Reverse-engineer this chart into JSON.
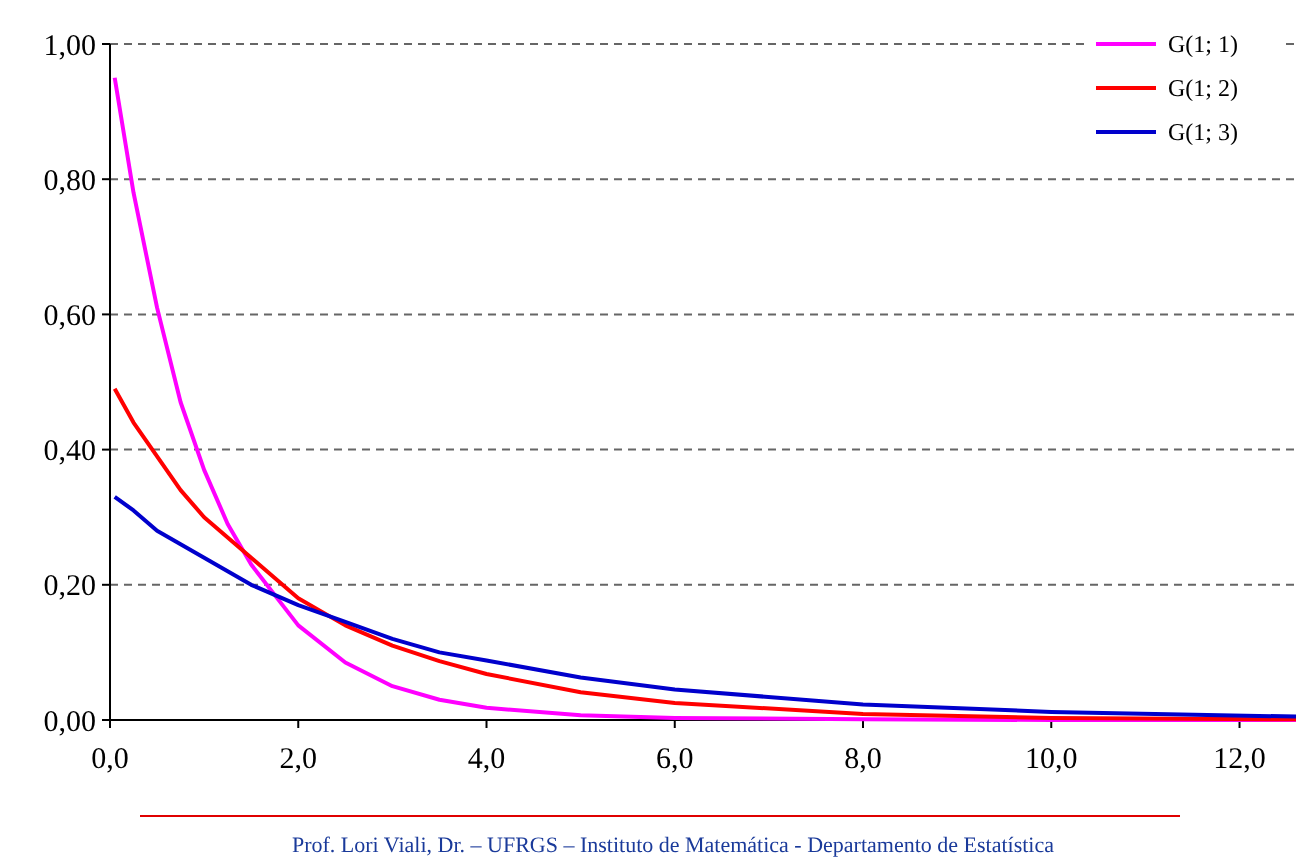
{
  "chart_data": {
    "type": "line",
    "x": [
      0.05,
      0.25,
      0.5,
      0.75,
      1,
      1.25,
      1.5,
      2,
      2.5,
      3,
      3.5,
      4,
      5,
      6,
      8,
      10,
      12.6
    ],
    "series": [
      {
        "name": "G(1; 1)",
        "color": "#ff00ff",
        "values": [
          0.95,
          0.78,
          0.61,
          0.47,
          0.37,
          0.29,
          0.23,
          0.14,
          0.085,
          0.05,
          0.03,
          0.018,
          0.007,
          0.003,
          0.001,
          0,
          0
        ]
      },
      {
        "name": "G(1; 2)",
        "color": "#ff0000",
        "values": [
          0.49,
          0.44,
          0.39,
          0.34,
          0.3,
          0.27,
          0.24,
          0.18,
          0.14,
          0.11,
          0.087,
          0.068,
          0.041,
          0.025,
          0.009,
          0.003,
          0.001
        ]
      },
      {
        "name": "G(1; 3)",
        "color": "#0000cc",
        "values": [
          0.33,
          0.31,
          0.28,
          0.26,
          0.24,
          0.22,
          0.2,
          0.17,
          0.145,
          0.12,
          0.1,
          0.088,
          0.063,
          0.045,
          0.023,
          0.012,
          0.005
        ]
      }
    ],
    "xlim": [
      0,
      12.6
    ],
    "ylim": [
      0,
      1
    ],
    "xticks": [
      {
        "value": 0,
        "label": "0,0"
      },
      {
        "value": 2,
        "label": "2,0"
      },
      {
        "value": 4,
        "label": "4,0"
      },
      {
        "value": 6,
        "label": "6,0"
      },
      {
        "value": 8,
        "label": "8,0"
      },
      {
        "value": 10,
        "label": "10,0"
      },
      {
        "value": 12,
        "label": "12,0"
      }
    ],
    "yticks": [
      {
        "value": 0,
        "label": "0,00"
      },
      {
        "value": 0.2,
        "label": "0,20"
      },
      {
        "value": 0.4,
        "label": "0,40"
      },
      {
        "value": 0.6,
        "label": "0,60"
      },
      {
        "value": 0.8,
        "label": "0,80"
      },
      {
        "value": 1,
        "label": "1,00"
      }
    ],
    "grid": "y",
    "legend": "top right",
    "marker": "none",
    "line_style": "solid",
    "annotations": [
      "Prof. Lori Viali, Dr. – UFRGS – Instituto de Matemática - Departamento de Estatística"
    ]
  }
}
